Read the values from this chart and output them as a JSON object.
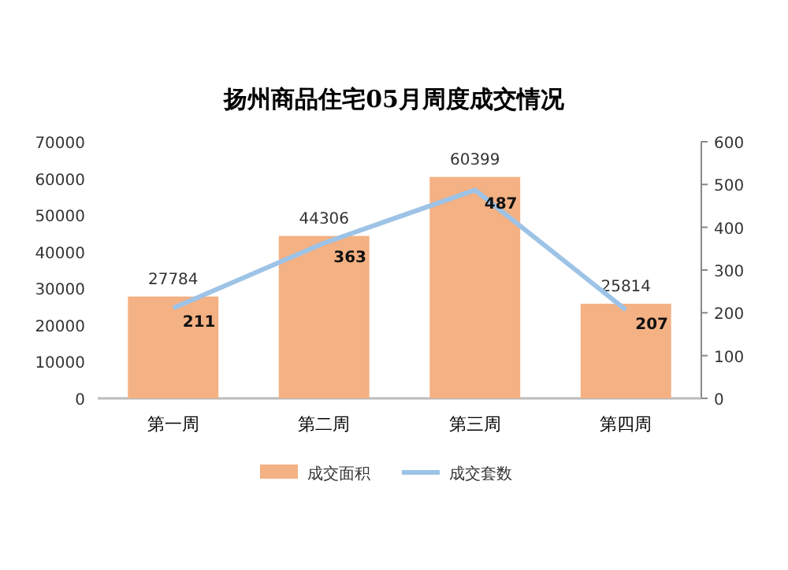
{
  "chart_data": {
    "type": "bar",
    "title": "扬州商品住宅05月周度成交情况",
    "categories": [
      "第一周",
      "第二周",
      "第三周",
      "第四周"
    ],
    "series": [
      {
        "name": "成交面积",
        "color": "#f4b183",
        "values": [
          27784,
          44306,
          60399,
          25814
        ]
      },
      {
        "name": "成交套数",
        "type": "line",
        "axis": "y2",
        "color": "#9dc3e6",
        "values": [
          211,
          363,
          487,
          207
        ]
      }
    ],
    "ylim": [
      0,
      70000
    ],
    "yticks": [
      0,
      10000,
      20000,
      30000,
      40000,
      50000,
      60000,
      70000
    ],
    "y2lim": [
      0,
      600
    ],
    "y2ticks": [
      0,
      100,
      200,
      300,
      400,
      500,
      600
    ],
    "data_labels": true,
    "legend": "bottom",
    "grid": false,
    "marker": "none",
    "line_style": "solid"
  }
}
